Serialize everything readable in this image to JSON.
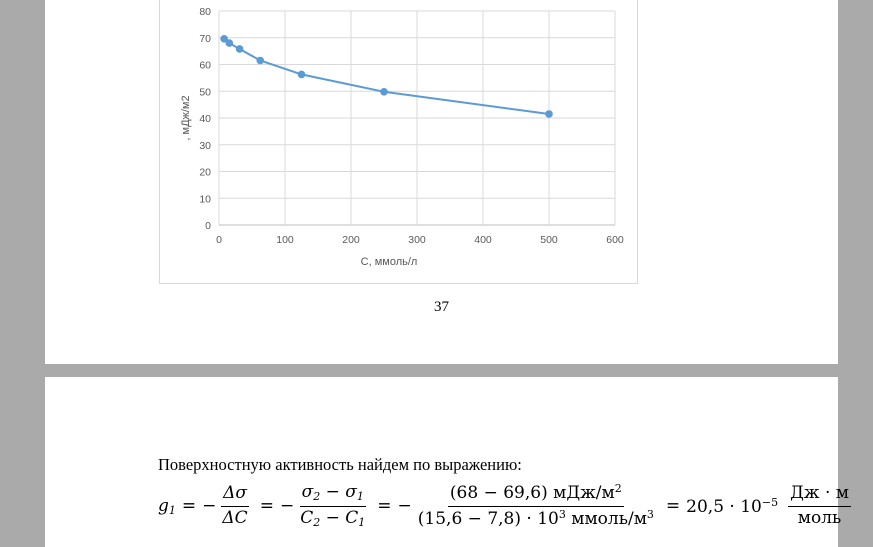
{
  "chart_data": {
    "type": "line",
    "xlabel": "С, ммоль/л",
    "ylabel": ", мДж/м2",
    "xlim": [
      0,
      600
    ],
    "ylim": [
      0,
      80
    ],
    "xticks": [
      "0",
      "100",
      "200",
      "300",
      "400",
      "500",
      "600"
    ],
    "yticks": [
      "0",
      "10",
      "20",
      "30",
      "40",
      "50",
      "60",
      "70",
      "80"
    ],
    "grid": true,
    "series_color": "#5b9bd5",
    "x": [
      7.8,
      15.6,
      31.25,
      62.5,
      125,
      250,
      500
    ],
    "y": [
      69.6,
      68,
      65.8,
      61.5,
      56.3,
      49.8,
      41.5
    ]
  },
  "page_number": "37",
  "paragraph": "Поверхностную активность найдем по выражению:",
  "formula": {
    "lhs": "g",
    "lhs_sub": "1",
    "eq": "=",
    "minus": "−",
    "f1_num": "Δσ",
    "f1_den": "ΔC",
    "f2_num_a": "σ",
    "f2_num_a_sub": "2",
    "f2_num_op": " − ",
    "f2_num_b": "σ",
    "f2_num_b_sub": "1",
    "f2_den_a": "C",
    "f2_den_a_sub": "2",
    "f2_den_op": " − ",
    "f2_den_b": "C",
    "f2_den_b_sub": "1",
    "f3_num": "(68 − 69,6) мДж/м",
    "f3_num_sup": "2",
    "f3_den": "(15,6 − 7,8) · 10",
    "f3_den_sup": "3",
    "f3_den_unit": " ммоль/м",
    "f3_den_unit_sup": "3",
    "result": "20,5 · 10",
    "result_sup": "−5",
    "unit_num": "Дж · м",
    "unit_den": "моль"
  }
}
